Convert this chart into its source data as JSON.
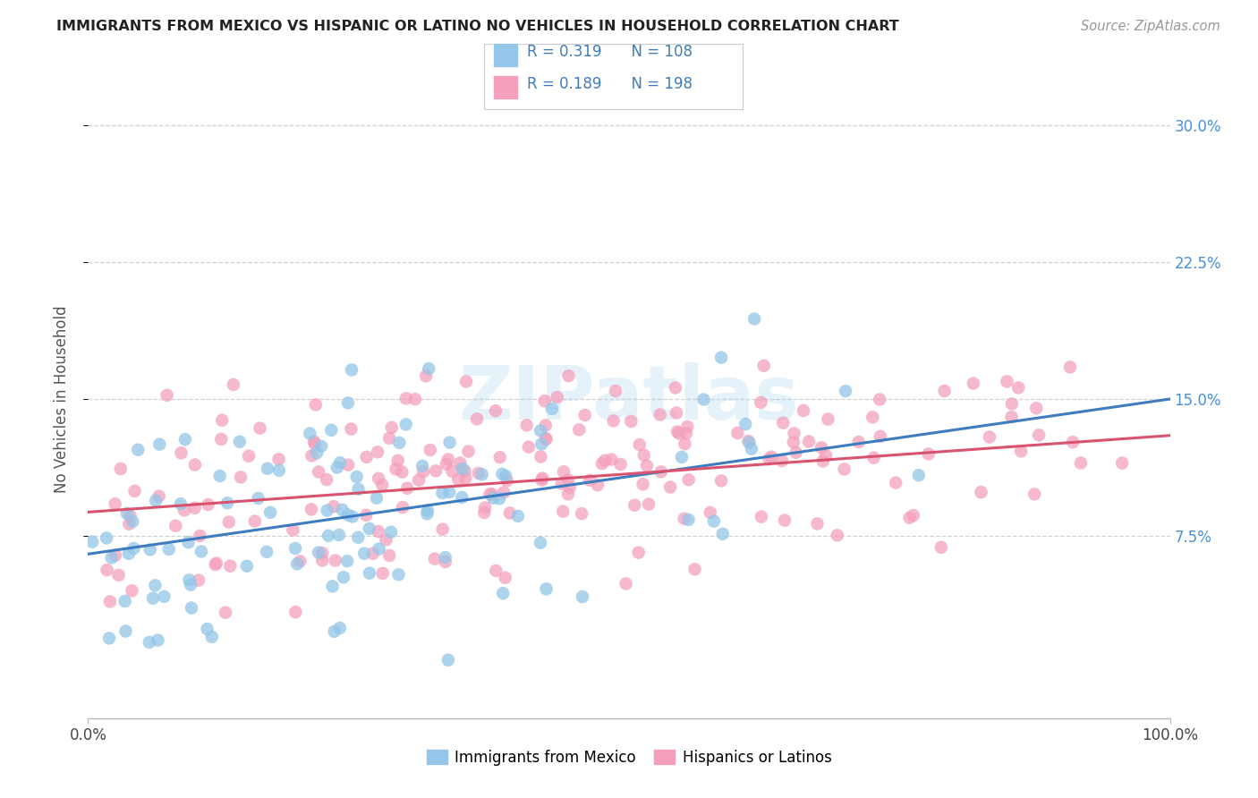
{
  "title": "IMMIGRANTS FROM MEXICO VS HISPANIC OR LATINO NO VEHICLES IN HOUSEHOLD CORRELATION CHART",
  "source": "Source: ZipAtlas.com",
  "ylabel": "No Vehicles in Household",
  "xlim": [
    0.0,
    1.0
  ],
  "ylim": [
    -0.025,
    0.325
  ],
  "yticks": [
    0.075,
    0.15,
    0.225,
    0.3
  ],
  "ytick_labels": [
    "7.5%",
    "15.0%",
    "22.5%",
    "30.0%"
  ],
  "xtick_labels": [
    "0.0%",
    "100.0%"
  ],
  "watermark": "ZIPatlas",
  "blue_color": "#93c6e8",
  "pink_color": "#f4a0bb",
  "blue_line_color": "#3d7dbf",
  "pink_line_color": "#d9536f",
  "blue_R": 0.319,
  "blue_N": 108,
  "pink_R": 0.189,
  "pink_N": 198,
  "legend_R_color": "#222222",
  "legend_N_color": "#3d7dbf",
  "background_color": "#ffffff",
  "grid_color": "#cccccc",
  "title_color": "#222222",
  "axis_label_color": "#555555",
  "right_tick_color": "#4a90d9",
  "blue_seed": 12,
  "pink_seed": 55
}
